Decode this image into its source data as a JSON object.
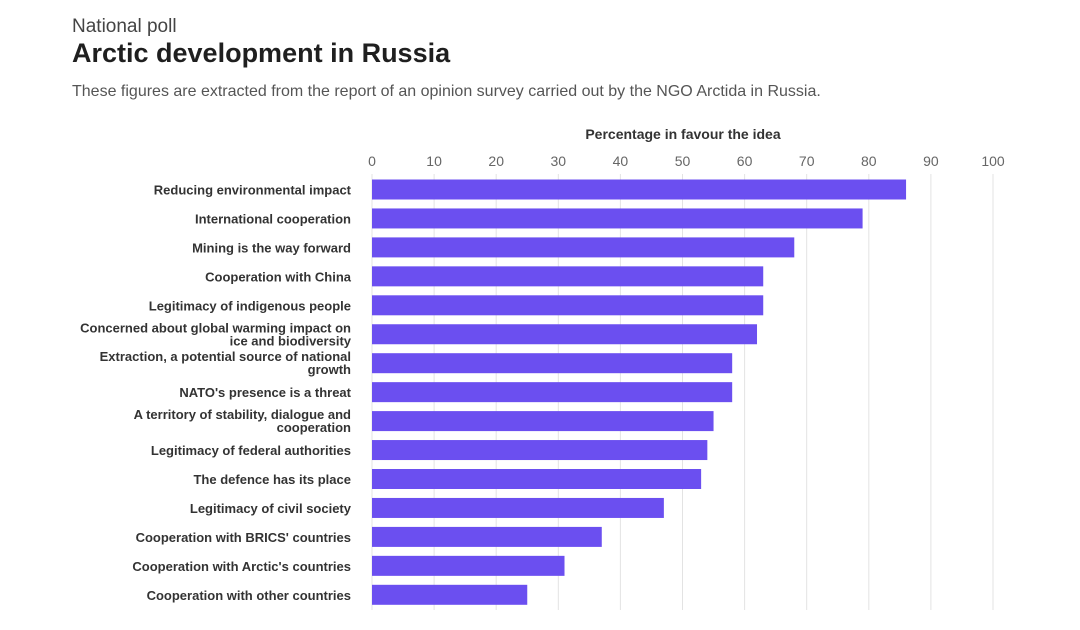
{
  "header": {
    "kicker": "National poll",
    "title": "Arctic development in Russia",
    "subtitle": "These figures are extracted from the report of an opinion survey carried out by the NGO Arctida in Russia."
  },
  "colors": {
    "bar": "#6b4ff0",
    "grid": "#e3e3e3"
  },
  "chart_data": {
    "type": "bar",
    "orientation": "horizontal",
    "xlabel": "Percentage in favour the idea",
    "xlim": [
      0,
      100
    ],
    "ticks": [
      0,
      10,
      20,
      30,
      40,
      50,
      60,
      70,
      80,
      90,
      100
    ],
    "grid": true,
    "categories": [
      "Reducing environmental impact",
      "International cooperation",
      "Mining is the way forward",
      "Cooperation with China",
      "Legitimacy of indigenous people",
      "Concerned about global warming impact on ice and biodiversity",
      "Extraction, a potential source of national growth",
      "NATO's presence is a threat",
      "A territory of stability, dialogue and cooperation",
      "Legitimacy of federal authorities",
      "The defence has its place",
      "Legitimacy of civil society",
      "Cooperation with BRICS' countries",
      "Cooperation with Arctic's countries",
      "Cooperation with other countries"
    ],
    "category_lines": [
      [
        "Reducing environmental impact"
      ],
      [
        "International cooperation"
      ],
      [
        "Mining is the way forward"
      ],
      [
        "Cooperation with China"
      ],
      [
        "Legitimacy of indigenous people"
      ],
      [
        "Concerned about global warming impact on",
        "ice and biodiversity"
      ],
      [
        "Extraction, a potential source of national",
        "growth"
      ],
      [
        "NATO's presence is a threat"
      ],
      [
        "A territory of stability, dialogue and",
        "cooperation"
      ],
      [
        "Legitimacy of federal authorities"
      ],
      [
        "The defence has its place"
      ],
      [
        "Legitimacy of civil society"
      ],
      [
        "Cooperation with BRICS' countries"
      ],
      [
        "Cooperation with Arctic's countries"
      ],
      [
        "Cooperation with other countries"
      ]
    ],
    "values": [
      86,
      79,
      68,
      63,
      63,
      62,
      58,
      58,
      55,
      54,
      53,
      47,
      37,
      31,
      25
    ]
  }
}
